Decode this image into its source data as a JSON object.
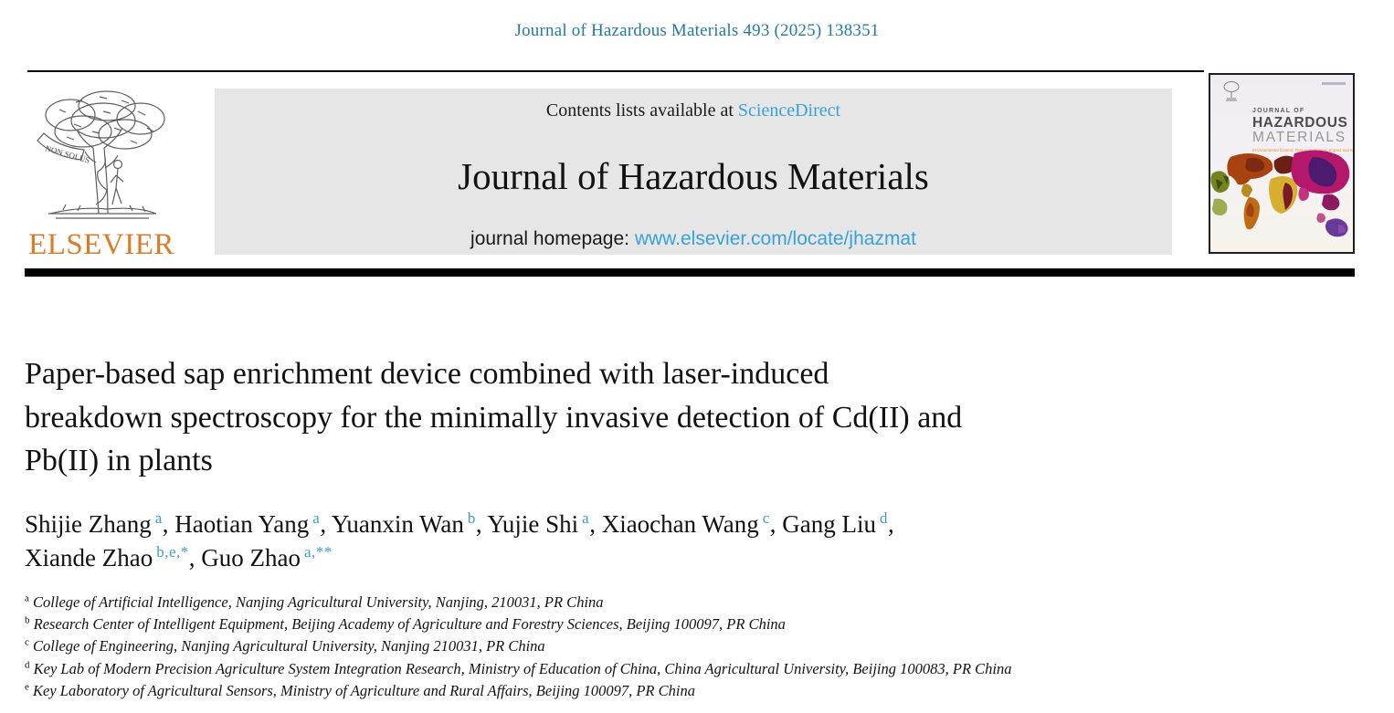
{
  "page": {
    "journal_ref": "Journal of Hazardous Materials 493 (2025) 138351"
  },
  "publisher": {
    "name": "ELSEVIER",
    "motto": "NON SOLUS"
  },
  "banner": {
    "contents_prefix": "Contents lists available at ",
    "sciencedirect_label": "ScienceDirect",
    "journal_title": "Journal of Hazardous Materials",
    "homepage_prefix": "journal homepage: ",
    "homepage_url": "www.elsevier.com/locate/jhazmat"
  },
  "cover": {
    "title_line1": "JOURNAL OF",
    "title_line2": "HAZARDOUS",
    "title_line3": "MATERIALS",
    "subtitle": "Environmental Control, Risk Assessment, Impact and Management"
  },
  "article": {
    "title_lines": [
      "Paper-based sap enrichment device combined with laser-induced",
      "breakdown spectroscopy for the minimally invasive detection of Cd(II) and",
      "Pb(II) in plants"
    ],
    "authors": [
      {
        "name": "Shijie Zhang",
        "sup": "a",
        "after": ", "
      },
      {
        "name": "Haotian Yang",
        "sup": "a",
        "after": ", "
      },
      {
        "name": "Yuanxin Wan",
        "sup": "b",
        "after": ", "
      },
      {
        "name": "Yujie Shi",
        "sup": "a",
        "after": ", "
      },
      {
        "name": "Xiaochan Wang",
        "sup": "c",
        "after": ", "
      },
      {
        "name": "Gang Liu",
        "sup": "d",
        "after": ",",
        "newline": true
      },
      {
        "name": "Xiande Zhao",
        "sup": "b,e,*",
        "after": ", "
      },
      {
        "name": "Guo Zhao",
        "sup": "a,**",
        "after": ""
      }
    ],
    "affiliations": [
      {
        "sup": "a",
        "text": "College of Artificial Intelligence, Nanjing Agricultural University, Nanjing, 210031, PR China"
      },
      {
        "sup": "b",
        "text": "Research Center of Intelligent Equipment, Beijing Academy of Agriculture and Forestry Sciences, Beijing 100097, PR China"
      },
      {
        "sup": "c",
        "text": "College of Engineering, Nanjing Agricultural University, Nanjing 210031, PR China"
      },
      {
        "sup": "d",
        "text": "Key Lab of Modern Precision Agriculture System Integration Research, Ministry of Education of China, China Agricultural University, Beijing 100083, PR China"
      },
      {
        "sup": "e",
        "text": "Key Laboratory of Agricultural Sensors, Ministry of Agriculture and Rural Affairs, Beijing 100097, PR China"
      }
    ]
  },
  "colors": {
    "ref_teal": "#1f7ca6",
    "link_blue": "#35a2db",
    "superscript_blue": "#3d9bd5",
    "elsevier_orange": "#dd7b24",
    "cover_subtitle_orange": "#e8931c",
    "banner_gray": "#e6e6e6",
    "bar_black": "#000000"
  }
}
